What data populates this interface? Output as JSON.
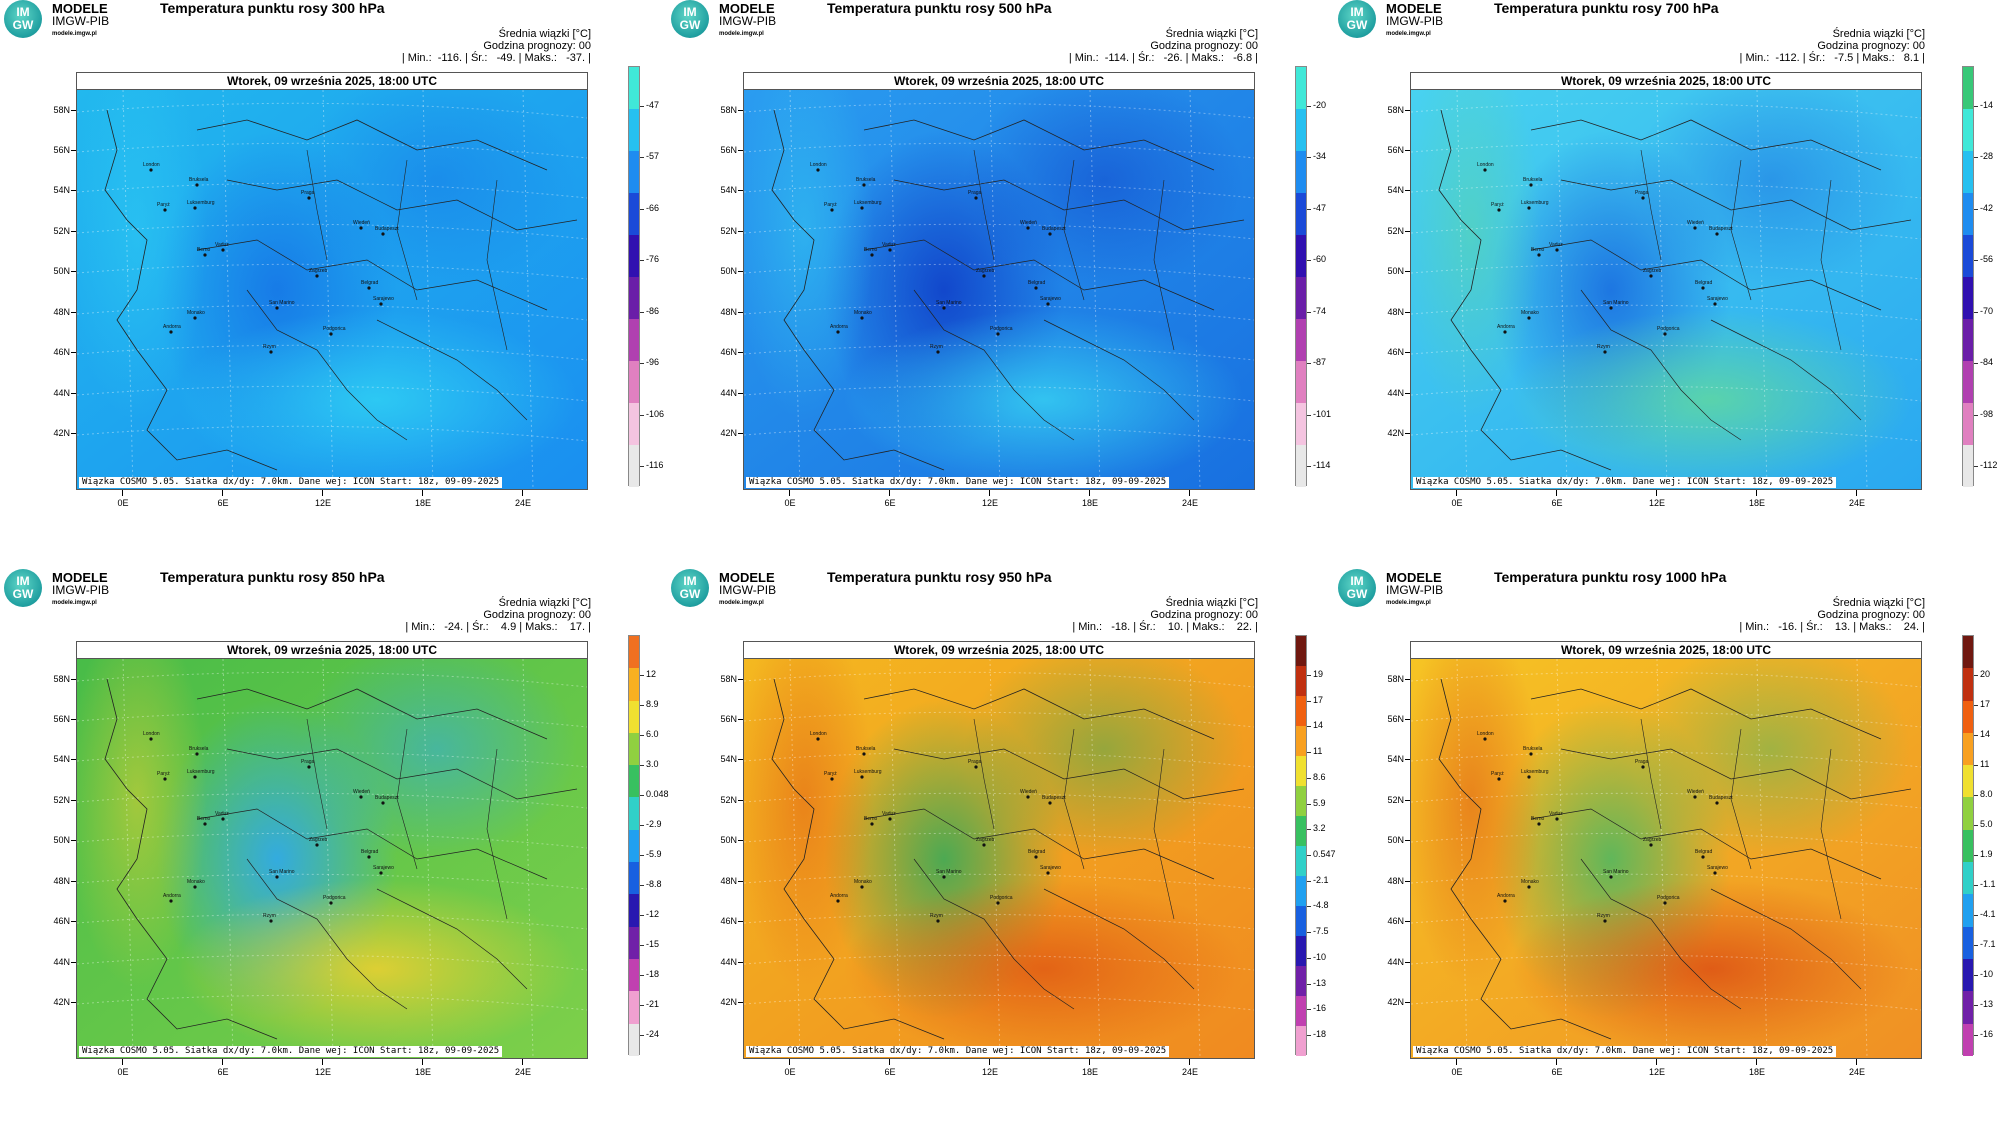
{
  "brand": {
    "name": "MODELE",
    "org": "IMGW-PIB",
    "site": "modele.imgw.pl",
    "logo_top": "IM",
    "logo_bottom": "GW"
  },
  "common": {
    "legend_title": "Średnia wiązki [°C]",
    "forecast_hour": "Godzina prognozy: 00",
    "date": "Wtorek, 09 września 2025, 18:00 UTC",
    "footer": "Wiązka COSMO 5.05. Siatka dx/dy: 7.0km. Dane wej: ICON Start: 18z, 09-09-2025",
    "lat_labels": [
      "58N",
      "56N",
      "54N",
      "52N",
      "50N",
      "48N",
      "46N",
      "44N",
      "42N"
    ],
    "lon_labels": [
      "0E",
      "6E",
      "12E",
      "18E",
      "24E"
    ],
    "cities": [
      "London",
      "Bruksela",
      "Paryż",
      "Luksemburg",
      "Praga",
      "Wiedeń",
      "Budapeszt",
      "Berno",
      "Vaduz",
      "Zagrzeb",
      "Belgrad",
      "San Marino",
      "Sarajewo",
      "Monako",
      "Andorra",
      "Podgorica",
      "Rzym"
    ]
  },
  "panels": [
    {
      "id": "p300",
      "title": "Temperatura punktu rosy 300 hPa",
      "stats": "| Min.:  -116. | Śr.:   -49. | Maks.:   -37. |",
      "scale": [
        "-47",
        "-57",
        "-66",
        "-76",
        "-86",
        "-96",
        "-106",
        "-116"
      ],
      "scale_colors": [
        "#40e8d8",
        "#26c0f0",
        "#1e8cf0",
        "#1a4ad8",
        "#3010b0",
        "#6a1ea8",
        "#b040b0",
        "#e080c0",
        "#f4c4e0",
        "#e8e8e8"
      ],
      "map_colors": [
        "#22b8ee",
        "#1a8ff0",
        "#1676e6",
        "#30d0f4"
      ]
    },
    {
      "id": "p500",
      "title": "Temperatura punktu rosy 500 hPa",
      "stats": "| Min.:  -114. | Śr.:   -26. | Maks.:   -6.8 |",
      "scale": [
        "-20",
        "-34",
        "-47",
        "-60",
        "-74",
        "-87",
        "-101",
        "-114"
      ],
      "scale_colors": [
        "#40e8d8",
        "#26c0f0",
        "#1e8cf0",
        "#1a4ad8",
        "#3010b0",
        "#6a1ea8",
        "#b040b0",
        "#e080c0",
        "#f4c4e0",
        "#e8e8e8"
      ],
      "map_colors": [
        "#2a9cf0",
        "#1870e0",
        "#1040c8",
        "#36cff2"
      ]
    },
    {
      "id": "p700",
      "title": "Temperatura punktu rosy 700 hPa",
      "stats": "| Min.:  -112. | Śr.:   -7.5 | Maks.:   8.1 |",
      "scale": [
        "-14",
        "-28",
        "-42",
        "-56",
        "-70",
        "-84",
        "-98",
        "-112"
      ],
      "scale_colors": [
        "#38c878",
        "#40e8d8",
        "#26c0f0",
        "#1e8cf0",
        "#1a4ad8",
        "#3010b0",
        "#6a1ea8",
        "#b040b0",
        "#e080c0",
        "#e8e8e8"
      ],
      "map_colors": [
        "#48d2f0",
        "#2aa8f0",
        "#1a6ee0",
        "#60d8a0"
      ]
    },
    {
      "id": "p850",
      "title": "Temperatura punktu rosy 850 hPa",
      "stats": "| Min.:   -24. | Śr.:    4.9 | Maks.:    17. |",
      "scale": [
        "12",
        "8.9",
        "6.0",
        "3.0",
        "0.048",
        "-2.9",
        "-5.9",
        "-8.8",
        "-12",
        "-15",
        "-18",
        "-21",
        "-24"
      ],
      "scale_colors": [
        "#f07020",
        "#f8b020",
        "#f0e030",
        "#90d040",
        "#38c060",
        "#30d0c8",
        "#20a0f0",
        "#1860e0",
        "#2818b0",
        "#7020a8",
        "#c040b0",
        "#f0a0d0",
        "#e8e8e8"
      ],
      "map_colors": [
        "#48bc48",
        "#7ed04a",
        "#2ea8f0",
        "#f0d030"
      ]
    },
    {
      "id": "p950",
      "title": "Temperatura punktu rosy 950 hPa",
      "stats": "| Min.:   -18. | Śr.:    10. | Maks.:    22. |",
      "scale": [
        "19",
        "17",
        "14",
        "11",
        "8.6",
        "5.9",
        "3.2",
        "0.547",
        "-2.1",
        "-4.8",
        "-7.5",
        "-10",
        "-13",
        "-16",
        "-18"
      ],
      "scale_colors": [
        "#701810",
        "#c03010",
        "#f06010",
        "#f8a020",
        "#f0e030",
        "#90d040",
        "#38c060",
        "#30d0c8",
        "#20a0f0",
        "#1860e0",
        "#2818b0",
        "#7020a8",
        "#c040b0",
        "#f0a0d0"
      ],
      "map_colors": [
        "#f4b820",
        "#f08a20",
        "#3aaa58",
        "#e05a14"
      ]
    },
    {
      "id": "p1000",
      "title": "Temperatura punktu rosy 1000 hPa",
      "stats": "| Min.:   -16. | Śr.:    13. | Maks.:    24. |",
      "scale": [
        "20",
        "17",
        "14",
        "11",
        "8.0",
        "5.0",
        "1.9",
        "-1.1",
        "-4.1",
        "-7.1",
        "-10",
        "-13",
        "-16"
      ],
      "scale_colors": [
        "#701810",
        "#c03010",
        "#f06010",
        "#f8a020",
        "#f0e030",
        "#90d040",
        "#38c060",
        "#30d0c8",
        "#20a0f0",
        "#1860e0",
        "#2818b0",
        "#7020a8",
        "#c040b0"
      ],
      "map_colors": [
        "#f6c424",
        "#f09024",
        "#50b860",
        "#dc5014"
      ]
    }
  ]
}
